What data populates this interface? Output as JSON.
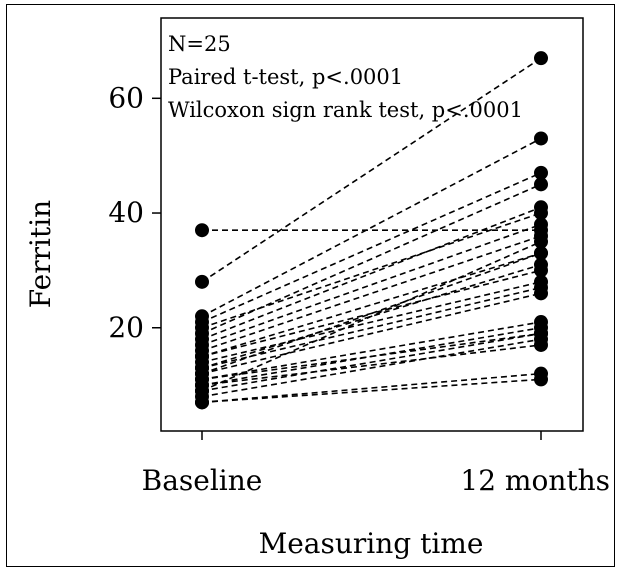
{
  "chart_data": {
    "type": "line",
    "style": "paired dot plot, dashed black lines connecting each subject",
    "annotations": [
      "N=25",
      "Paired t-test, p<.0001",
      "Wilcoxon sign rank test, p<.0001"
    ],
    "xlabel": "Measuring time",
    "ylabel": "Ferritin",
    "categories": [
      "Baseline",
      "12 months"
    ],
    "y_ticks": [
      20,
      40,
      60
    ],
    "ylim": [
      2,
      74
    ],
    "grid": false,
    "legend": "none",
    "colors": {
      "points": "#000000",
      "lines": "#000000"
    },
    "pairs": [
      [
        37,
        37
      ],
      [
        28,
        67
      ],
      [
        22,
        53
      ],
      [
        21,
        47
      ],
      [
        20,
        40
      ],
      [
        19,
        45
      ],
      [
        18,
        41
      ],
      [
        17,
        38
      ],
      [
        16,
        36
      ],
      [
        15,
        33
      ],
      [
        15,
        30
      ],
      [
        14,
        28
      ],
      [
        13,
        31
      ],
      [
        13,
        27
      ],
      [
        12,
        26
      ],
      [
        12,
        33
      ],
      [
        11,
        21
      ],
      [
        11,
        19
      ],
      [
        10,
        20
      ],
      [
        10,
        17
      ],
      [
        9,
        35
      ],
      [
        9,
        19
      ],
      [
        8,
        18
      ],
      [
        7,
        11
      ],
      [
        7,
        12
      ]
    ]
  }
}
